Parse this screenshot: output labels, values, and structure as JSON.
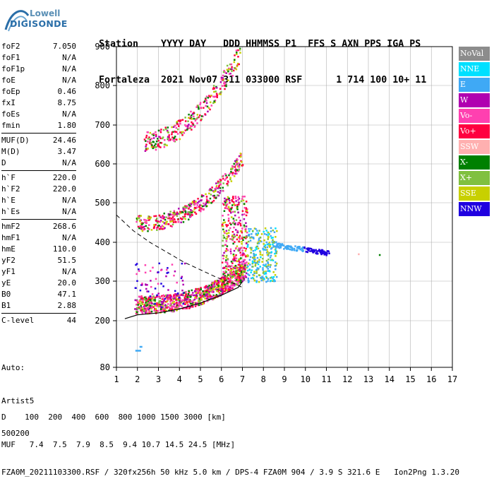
{
  "logo": {
    "line1": "Lowell",
    "line2": "DIGISONDE"
  },
  "header": {
    "line1": "Station    YYYY DAY   DDD HHMMSS P1  FFS S AXN PPS IGA PS",
    "line2": "Fortaleza  2021 Nov07 311 033000 RSF      1 714 100 10+ 11"
  },
  "params_group1": [
    {
      "key": "foF2",
      "value": "7.050"
    },
    {
      "key": "foF1",
      "value": "N/A"
    },
    {
      "key": "foF1p",
      "value": "N/A"
    },
    {
      "key": "foE",
      "value": "N/A"
    },
    {
      "key": "foEp",
      "value": "0.46"
    },
    {
      "key": "fxI",
      "value": "8.75"
    },
    {
      "key": "foEs",
      "value": "N/A"
    },
    {
      "key": "fmin",
      "value": "1.80"
    }
  ],
  "params_group2": [
    {
      "key": "MUF(D)",
      "value": "24.46"
    },
    {
      "key": "M(D)",
      "value": "3.47"
    },
    {
      "key": "D",
      "value": "N/A"
    }
  ],
  "params_group3": [
    {
      "key": "h`F",
      "value": "220.0"
    },
    {
      "key": "h`F2",
      "value": "220.0"
    },
    {
      "key": "h`E",
      "value": "N/A"
    },
    {
      "key": "h`Es",
      "value": "N/A"
    }
  ],
  "params_group4": [
    {
      "key": "hmF2",
      "value": "268.6"
    },
    {
      "key": "hmF1",
      "value": "N/A"
    },
    {
      "key": "hmE",
      "value": "110.0"
    },
    {
      "key": "yF2",
      "value": "51.5"
    },
    {
      "key": "yF1",
      "value": "N/A"
    },
    {
      "key": "yE",
      "value": "20.0"
    },
    {
      "key": "B0",
      "value": "47.1"
    },
    {
      "key": "B1",
      "value": "2.88"
    }
  ],
  "params_group5": [
    {
      "key": "C-level",
      "value": "44"
    }
  ],
  "autoscaling": {
    "line1": "Auto:",
    "line2": "Artist5",
    "line3": "500200"
  },
  "legend": [
    {
      "label": "NoVal",
      "color": "#8c8c8c"
    },
    {
      "label": "NNE",
      "color": "#00e0ff"
    },
    {
      "label": "E",
      "color": "#3fa9f5"
    },
    {
      "label": "W",
      "color": "#b000b0"
    },
    {
      "label": "Vo-",
      "color": "#ff40b0"
    },
    {
      "label": "Vo+",
      "color": "#ff0040"
    },
    {
      "label": "SSW",
      "color": "#ffb0b0"
    },
    {
      "label": "X-",
      "color": "#008000"
    },
    {
      "label": "X+",
      "color": "#80c040"
    },
    {
      "label": "SSE",
      "color": "#c8d000"
    },
    {
      "label": "NNW",
      "color": "#2000e0"
    }
  ],
  "axes": {
    "x_ticks": [
      "1",
      "2",
      "3",
      "4",
      "5",
      "6",
      "7",
      "8",
      "9",
      "10",
      "11",
      "12",
      "13",
      "14",
      "15",
      "16",
      "17"
    ],
    "y_ticks": [
      "80",
      "200",
      "300",
      "400",
      "500",
      "600",
      "700",
      "800",
      "900"
    ],
    "x_range": [
      1,
      17
    ],
    "y_range": [
      80,
      900
    ]
  },
  "bottom": {
    "line1": "D    100  200  400  600  800 1000 1500 3000 [km]",
    "line2": "MUF   7.4  7.5  7.9  8.5  9.4 10.7 14.5 24.5 [MHz]",
    "line3": "FZA0M_20211103300.RSF / 320fx256h 50 kHz 5.0 km / DPS-4 FZA0M 904 / 3.9 S 321.6 E   Ion2Png 1.3.20"
  }
}
